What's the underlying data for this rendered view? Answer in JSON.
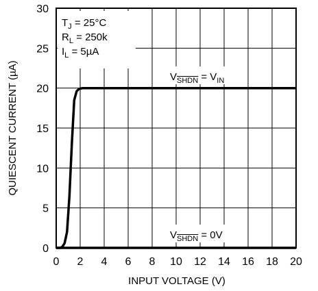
{
  "chart_data": {
    "type": "line",
    "xlabel": "INPUT VOLTAGE (V)",
    "ylabel": "QUIESCENT CURRENT (µA)",
    "xlim": [
      0,
      20
    ],
    "ylim": [
      0,
      30
    ],
    "xticks": [
      0,
      2,
      4,
      6,
      8,
      10,
      12,
      14,
      16,
      18,
      20
    ],
    "yticks": [
      0,
      5,
      10,
      15,
      20,
      25,
      30
    ],
    "grid": true,
    "conditions": [
      {
        "main": "T",
        "sub": "J",
        "rest": " = 25°C"
      },
      {
        "main": "R",
        "sub": "L",
        "rest": " = 250k"
      },
      {
        "main": "I",
        "sub": "L",
        "rest": " = 5µA"
      }
    ],
    "series": [
      {
        "label": {
          "pre": "V",
          "over": "SHDN",
          "post": " = V",
          "post_sub": "IN"
        },
        "x": [
          0,
          0.3,
          0.5,
          0.7,
          0.9,
          1.1,
          1.3,
          1.5,
          1.7,
          1.9,
          2.2,
          3,
          5,
          10,
          15,
          20
        ],
        "y": [
          0,
          0,
          0.1,
          0.6,
          2,
          6.5,
          13,
          18.5,
          19.6,
          19.9,
          20,
          20,
          20,
          20,
          20,
          20
        ]
      },
      {
        "label": {
          "pre": "V",
          "over": "SHDN",
          "post": " = 0V",
          "post_sub": ""
        },
        "x": [
          0,
          5,
          10,
          15,
          20
        ],
        "y": [
          0,
          0,
          0,
          0,
          0
        ]
      }
    ]
  }
}
